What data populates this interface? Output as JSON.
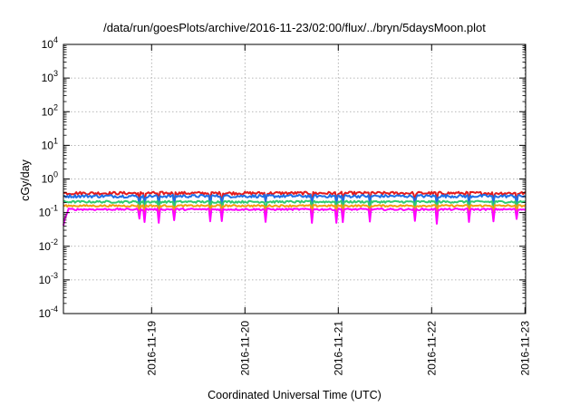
{
  "chart_data": {
    "type": "line",
    "title": "/data/run/goesPlots/archive/2016-11-23/02:00/flux/../bryn/5daysMoon.plot",
    "xlabel": "Coordinated Universal Time (UTC)",
    "ylabel": "cGy/day",
    "y_scale": "log",
    "ylim": [
      0.0001,
      10000
    ],
    "y_ticks": [
      {
        "base": "10",
        "exp": "-4"
      },
      {
        "base": "10",
        "exp": "-3"
      },
      {
        "base": "10",
        "exp": "-2"
      },
      {
        "base": "10",
        "exp": "-1"
      },
      {
        "base": "10",
        "exp": "0"
      },
      {
        "base": "10",
        "exp": "1"
      },
      {
        "base": "10",
        "exp": "2"
      },
      {
        "base": "10",
        "exp": "3"
      },
      {
        "base": "10",
        "exp": "4"
      }
    ],
    "xlim": [
      "2016-11-18 01:20",
      "2016-11-23 00:10"
    ],
    "x_ticks": [
      "2016-11-19",
      "2016-11-20",
      "2016-11-21",
      "2016-11-22",
      "2016-11-23"
    ],
    "grid": true,
    "legend": "none",
    "series": [
      {
        "color": "#e41a1c",
        "base": 0.38,
        "jitter": 0.1,
        "dip": 0.55,
        "dip_prob": 0.05
      },
      {
        "color": "#1e6fe6",
        "base": 0.31,
        "jitter": 0.1,
        "dip": 0.55,
        "dip_prob": 0.05
      },
      {
        "color": "#2ecc71",
        "base": 0.21,
        "jitter": 0.07,
        "dip": 0.55,
        "dip_prob": 0.05
      },
      {
        "color": "#f39c12",
        "base": 0.16,
        "jitter": 0.06,
        "dip": 0.55,
        "dip_prob": 0.05
      },
      {
        "color": "#ff00ff",
        "base": 0.125,
        "jitter": 0.06,
        "dip": 0.45,
        "dip_prob": 0.08
      }
    ]
  }
}
